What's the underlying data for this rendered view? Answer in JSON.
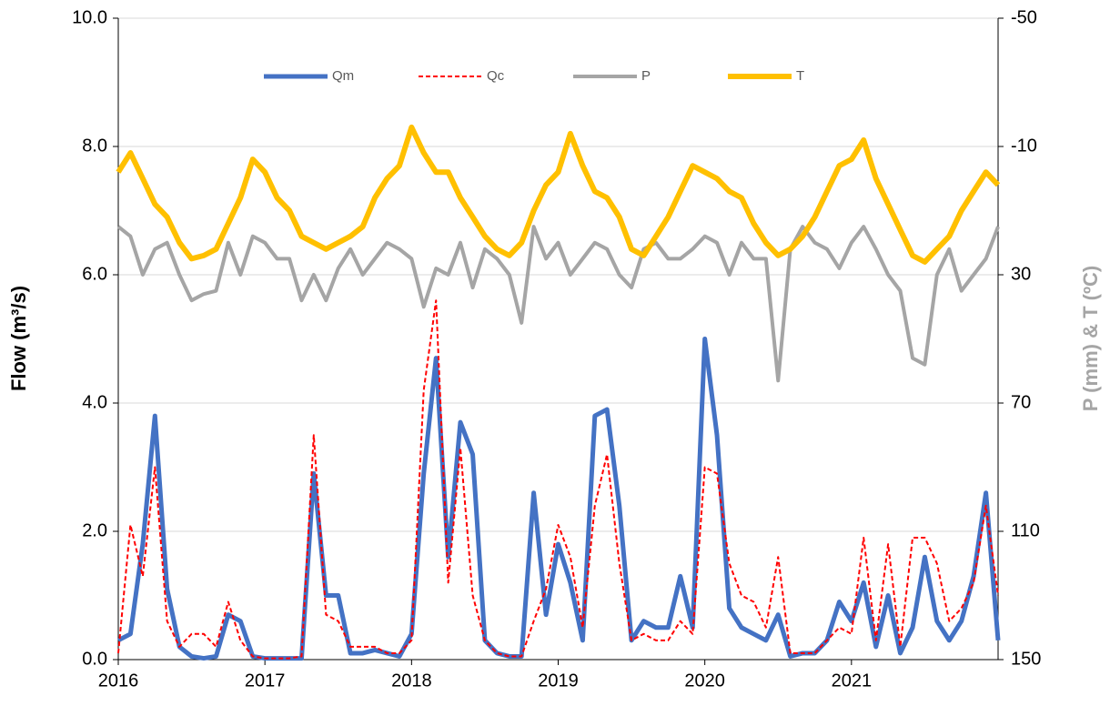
{
  "chart_data": {
    "type": "line",
    "y_label": "Flow (m³/s)",
    "y2_label": "P (mm) & T (ºC)",
    "xlim": [
      2016,
      2022
    ],
    "xticks": [
      2016,
      2017,
      2018,
      2019,
      2020,
      2021
    ],
    "ylim": [
      0,
      10
    ],
    "yticks": [
      {
        "value": 0,
        "label": "0.0"
      },
      {
        "value": 2,
        "label": "2.0"
      },
      {
        "value": 4,
        "label": "4.0"
      },
      {
        "value": 6,
        "label": "6.0"
      },
      {
        "value": 8,
        "label": "8.0"
      },
      {
        "value": 10,
        "label": "10.0"
      }
    ],
    "y2lim": [
      150,
      -50
    ],
    "y2ticks": [
      150,
      110,
      70,
      30,
      -10,
      -50
    ],
    "grid": true,
    "legend": "top",
    "x": [
      2016.0,
      2016.083,
      2016.167,
      2016.25,
      2016.333,
      2016.417,
      2016.5,
      2016.583,
      2016.667,
      2016.75,
      2016.833,
      2016.917,
      2017.0,
      2017.083,
      2017.167,
      2017.25,
      2017.333,
      2017.417,
      2017.5,
      2017.583,
      2017.667,
      2017.75,
      2017.833,
      2017.917,
      2018.0,
      2018.083,
      2018.167,
      2018.25,
      2018.333,
      2018.417,
      2018.5,
      2018.583,
      2018.667,
      2018.75,
      2018.833,
      2018.917,
      2019.0,
      2019.083,
      2019.167,
      2019.25,
      2019.333,
      2019.417,
      2019.5,
      2019.583,
      2019.667,
      2019.75,
      2019.833,
      2019.917,
      2020.0,
      2020.083,
      2020.167,
      2020.25,
      2020.333,
      2020.417,
      2020.5,
      2020.583,
      2020.667,
      2020.75,
      2020.833,
      2020.917,
      2021.0,
      2021.083,
      2021.167,
      2021.25,
      2021.333,
      2021.417,
      2021.5,
      2021.583,
      2021.667,
      2021.75,
      2021.833,
      2021.917,
      2022.0
    ],
    "series": [
      {
        "name": "Qm",
        "color": "#4472c4",
        "width": 5,
        "dash": false,
        "values": [
          0.3,
          0.4,
          1.8,
          3.8,
          1.1,
          0.2,
          0.05,
          0.02,
          0.05,
          0.7,
          0.6,
          0.05,
          0.02,
          0.02,
          0.02,
          0.02,
          2.9,
          1.0,
          1.0,
          0.1,
          0.1,
          0.15,
          0.1,
          0.05,
          0.4,
          2.9,
          4.7,
          1.6,
          3.7,
          3.2,
          0.3,
          0.1,
          0.05,
          0.05,
          2.6,
          0.7,
          1.8,
          1.2,
          0.3,
          3.8,
          3.9,
          2.4,
          0.3,
          0.6,
          0.5,
          0.5,
          1.3,
          0.5,
          5.0,
          3.5,
          0.8,
          0.5,
          0.4,
          0.3,
          0.7,
          0.05,
          0.1,
          0.1,
          0.3,
          0.9,
          0.6,
          1.2,
          0.2,
          1.0,
          0.1,
          0.5,
          1.6,
          0.6,
          0.3,
          0.6,
          1.3,
          2.6,
          0.3
        ]
      },
      {
        "name": "Qc",
        "color": "#ff0000",
        "width": 2,
        "dash": true,
        "values": [
          0.1,
          2.1,
          1.3,
          3.0,
          0.6,
          0.2,
          0.4,
          0.4,
          0.2,
          0.9,
          0.3,
          0.05,
          0.02,
          0.02,
          0.02,
          0.05,
          3.5,
          0.7,
          0.6,
          0.2,
          0.2,
          0.2,
          0.1,
          0.1,
          0.3,
          4.2,
          5.6,
          1.2,
          3.3,
          1.0,
          0.3,
          0.1,
          0.05,
          0.05,
          0.6,
          1.1,
          2.1,
          1.6,
          0.5,
          2.4,
          3.2,
          1.5,
          0.3,
          0.4,
          0.3,
          0.3,
          0.6,
          0.4,
          3.0,
          2.9,
          1.5,
          1.0,
          0.9,
          0.5,
          1.6,
          0.1,
          0.1,
          0.1,
          0.3,
          0.5,
          0.4,
          1.9,
          0.3,
          1.8,
          0.2,
          1.9,
          1.9,
          1.5,
          0.6,
          0.8,
          1.2,
          2.4,
          1.0
        ]
      },
      {
        "name": "P",
        "color": "#a5a5a5",
        "width": 4,
        "dash": false,
        "axis": "y2",
        "values": [
          15,
          18,
          30,
          22,
          20,
          30,
          38,
          36,
          35,
          20,
          30,
          18,
          20,
          25,
          25,
          38,
          30,
          38,
          28,
          22,
          30,
          25,
          20,
          22,
          25,
          40,
          28,
          30,
          20,
          34,
          22,
          25,
          30,
          45,
          15,
          25,
          20,
          30,
          25,
          20,
          22,
          30,
          34,
          22,
          20,
          25,
          25,
          22,
          18,
          20,
          30,
          20,
          25,
          25,
          63,
          22,
          15,
          20,
          22,
          28,
          20,
          15,
          22,
          30,
          35,
          56,
          58,
          30,
          22,
          35,
          30,
          25,
          15
        ]
      },
      {
        "name": "T",
        "color": "#ffc000",
        "width": 6,
        "dash": false,
        "axis": "y2",
        "values": [
          -2,
          -8,
          0,
          8,
          12,
          20,
          25,
          24,
          22,
          14,
          6,
          -6,
          -2,
          6,
          10,
          18,
          20,
          22,
          20,
          18,
          15,
          6,
          0,
          -4,
          -16,
          -8,
          -2,
          -2,
          6,
          12,
          18,
          22,
          24,
          20,
          10,
          2,
          -2,
          -14,
          -4,
          4,
          6,
          12,
          22,
          24,
          18,
          12,
          4,
          -4,
          -2,
          0,
          4,
          6,
          14,
          20,
          24,
          22,
          18,
          12,
          4,
          -4,
          -6,
          -12,
          0,
          8,
          16,
          24,
          26,
          22,
          18,
          10,
          4,
          -2,
          2
        ]
      }
    ]
  }
}
